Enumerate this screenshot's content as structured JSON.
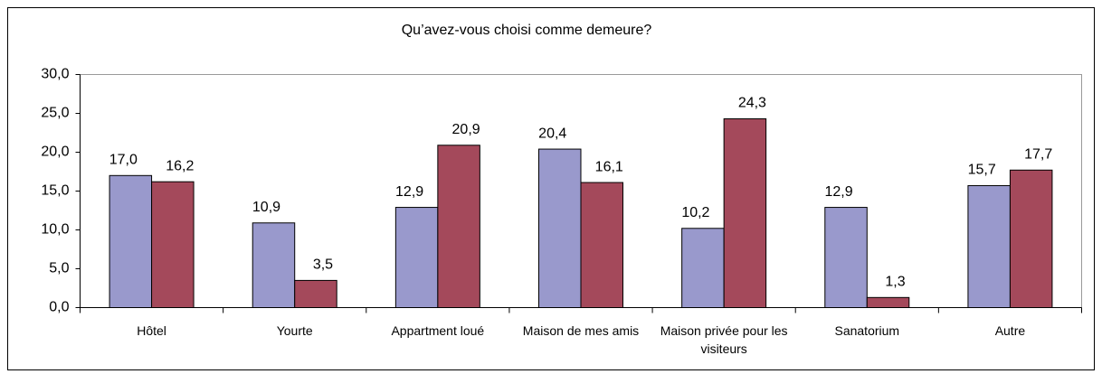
{
  "chart_data": {
    "type": "bar",
    "title": "Qu’avez-vous choisi comme demeure?",
    "categories": [
      "Hôtel",
      "Yourte",
      "Appartment loué",
      "Maison de mes amis",
      "Maison privée pour les visiteurs",
      "Sanatorium",
      "Autre"
    ],
    "series": [
      {
        "color": "#9999cc",
        "values": [
          17.0,
          10.9,
          12.9,
          20.4,
          10.2,
          12.9,
          15.7
        ],
        "value_labels": [
          "17,0",
          "10,9",
          "12,9",
          "20,4",
          "10,2",
          "12,9",
          "15,7"
        ]
      },
      {
        "color": "#a4495b",
        "values": [
          16.2,
          3.5,
          20.9,
          16.1,
          24.3,
          1.3,
          17.7
        ],
        "value_labels": [
          "16,2",
          "3,5",
          "20,9",
          "16,1",
          "24,3",
          "1,3",
          "17,7"
        ]
      }
    ],
    "ylim": [
      0,
      30
    ],
    "yticks": [
      {
        "value": 0,
        "label": "0,0"
      },
      {
        "value": 5,
        "label": "5,0"
      },
      {
        "value": 10,
        "label": "10,0"
      },
      {
        "value": 15,
        "label": "15,0"
      },
      {
        "value": 20,
        "label": "20,0"
      },
      {
        "value": 25,
        "label": "25,0"
      },
      {
        "value": 30,
        "label": "30,0"
      }
    ],
    "grid": false
  }
}
